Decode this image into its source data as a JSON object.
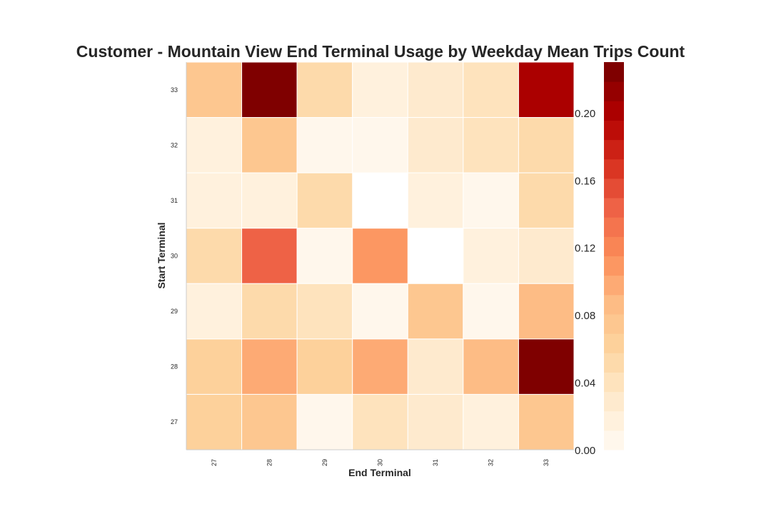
{
  "chart_data": {
    "type": "heatmap",
    "title": "Customer - Mountain View End Terminal Usage by Weekday Mean Trips Count",
    "xlabel": "End Terminal",
    "ylabel": "Start Terminal",
    "x_categories": [
      "27",
      "28",
      "29",
      "30",
      "31",
      "32",
      "33"
    ],
    "y_categories": [
      "33",
      "32",
      "31",
      "30",
      "29",
      "28",
      "27"
    ],
    "values": [
      [
        0.07,
        0.22,
        0.05,
        0.02,
        0.03,
        0.04,
        0.2
      ],
      [
        0.02,
        0.08,
        0.01,
        0.01,
        0.03,
        0.04,
        0.05
      ],
      [
        0.02,
        0.02,
        0.05,
        null,
        0.02,
        0.01,
        0.05
      ],
      [
        0.05,
        0.14,
        0.01,
        0.11,
        null,
        0.02,
        0.03
      ],
      [
        0.02,
        0.05,
        0.04,
        0.01,
        0.07,
        0.01,
        0.09
      ],
      [
        0.06,
        0.1,
        0.06,
        0.1,
        0.03,
        0.09,
        0.23
      ],
      [
        0.06,
        0.07,
        0.01,
        0.04,
        0.03,
        0.02,
        0.07
      ]
    ],
    "colormap": "OrRd",
    "colorbar": {
      "range": [
        0.0,
        0.23
      ],
      "ticks": [
        "0.00",
        "0.04",
        "0.08",
        "0.12",
        "0.16",
        "0.20"
      ],
      "tick_values": [
        0.0,
        0.04,
        0.08,
        0.12,
        0.16,
        0.2
      ],
      "levels": 20
    },
    "grid": false,
    "colors": [
      "#fff7ec",
      "#fee8c8",
      "#fdd49e",
      "#fdbb84",
      "#fc8d59",
      "#ef6548",
      "#d7301f",
      "#b30000",
      "#7f0000"
    ]
  }
}
